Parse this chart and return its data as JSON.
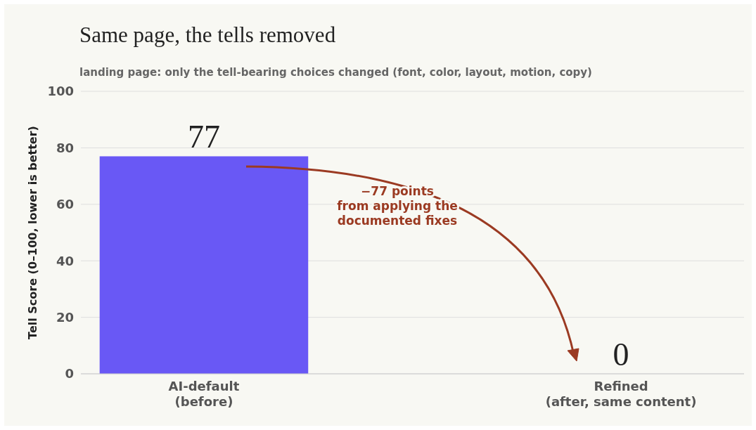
{
  "chart_data": {
    "type": "bar",
    "title": "Same page, the tells removed",
    "subtitle": "landing page: only the tell-bearing choices changed (font, color, layout, motion, copy)",
    "ylabel": "Tell Score  (0–100, lower is better)",
    "categories": [
      "AI-default\n(before)",
      "Refined\n(after, same content)"
    ],
    "values": [
      77,
      0
    ],
    "color": "#6958f5",
    "ylim": [
      0,
      100
    ],
    "yticks": [
      0,
      20,
      40,
      60,
      80,
      100
    ],
    "grid": "y",
    "data_labels": true,
    "annotations": [
      "−77 points\nfrom applying the\ndocumented fixes"
    ]
  }
}
